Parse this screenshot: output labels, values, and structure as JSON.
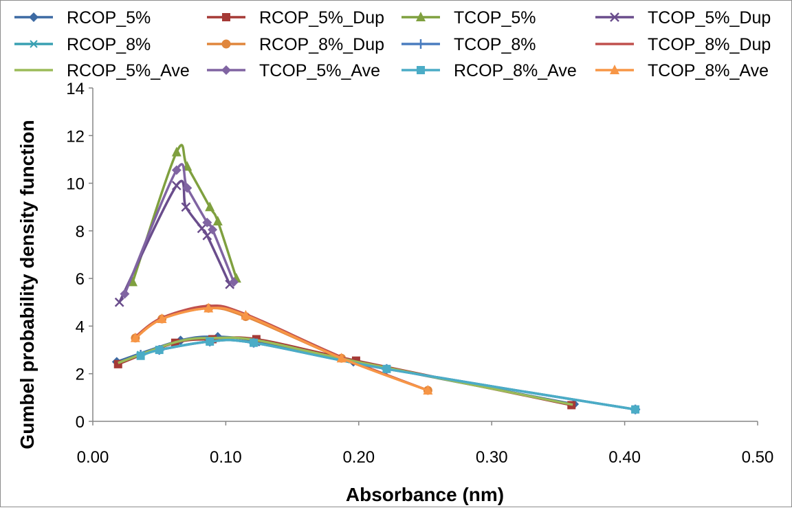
{
  "chart_data": {
    "type": "line",
    "title": "",
    "xlabel": "Absorbance (nm)",
    "ylabel": "Gumbel probability density function",
    "xlim": [
      0,
      0.5
    ],
    "ylim": [
      0,
      14
    ],
    "x_ticks": [
      "0.00",
      "0.10",
      "0.20",
      "0.30",
      "0.40",
      "0.50"
    ],
    "y_ticks": [
      "0",
      "2",
      "4",
      "6",
      "8",
      "10",
      "12",
      "14"
    ],
    "grid": false,
    "legend_position": "top",
    "series": [
      {
        "name": "RCOP_5%",
        "color": "#3d6aa3",
        "marker": "diamond",
        "x": [
          0.018,
          0.066,
          0.094,
          0.125,
          0.196,
          0.362
        ],
        "y": [
          2.5,
          3.4,
          3.55,
          3.35,
          2.5,
          0.72
        ]
      },
      {
        "name": "RCOP_5%_Dup",
        "color": "#a53a36",
        "marker": "square",
        "x": [
          0.019,
          0.062,
          0.09,
          0.123,
          0.198,
          0.36
        ],
        "y": [
          2.4,
          3.3,
          3.45,
          3.45,
          2.55,
          0.68
        ]
      },
      {
        "name": "TCOP_5%",
        "color": "#7fa03f",
        "marker": "triangle",
        "x": [
          0.03,
          0.063,
          0.071,
          0.088,
          0.094,
          0.108
        ],
        "y": [
          5.85,
          11.3,
          10.7,
          9.0,
          8.4,
          6.0
        ]
      },
      {
        "name": "TCOP_5%_Dup",
        "color": "#6a4d8c",
        "marker": "x",
        "x": [
          0.02,
          0.063,
          0.07,
          0.082,
          0.086,
          0.103
        ],
        "y": [
          5.0,
          9.9,
          9.0,
          8.1,
          7.8,
          5.75
        ]
      },
      {
        "name": "RCOP_8%",
        "color": "#39a0b2",
        "marker": "asterisk",
        "x": [
          0.036,
          0.05,
          0.088,
          0.121,
          0.221,
          0.408
        ],
        "y": [
          2.8,
          3.0,
          3.35,
          3.3,
          2.2,
          0.5
        ]
      },
      {
        "name": "RCOP_8%_Dup",
        "color": "#e0863c",
        "marker": "circle",
        "x": [
          0.032,
          0.052,
          0.087,
          0.115,
          0.187,
          0.252
        ],
        "y": [
          3.5,
          4.3,
          4.75,
          4.4,
          2.65,
          1.3
        ]
      },
      {
        "name": "TCOP_8%",
        "color": "#4a7dbf",
        "marker": "plus",
        "x": [
          0.036,
          0.05,
          0.088,
          0.121,
          0.221,
          0.408
        ],
        "y": [
          2.8,
          3.0,
          3.35,
          3.3,
          2.2,
          0.5
        ]
      },
      {
        "name": "TCOP_8%_Dup",
        "color": "#c0504d",
        "marker": "none",
        "x": [
          0.032,
          0.052,
          0.087,
          0.115,
          0.187,
          0.252
        ],
        "y": [
          3.55,
          4.35,
          4.85,
          4.5,
          2.7,
          1.3
        ]
      },
      {
        "name": "RCOP_5%_Ave",
        "color": "#9bbb59",
        "marker": "none",
        "x": [
          0.019,
          0.064,
          0.092,
          0.124,
          0.197,
          0.361
        ],
        "y": [
          2.45,
          3.35,
          3.5,
          3.4,
          2.52,
          0.7
        ]
      },
      {
        "name": "TCOP_5%_Ave",
        "color": "#8064a2",
        "marker": "diamond",
        "x": [
          0.024,
          0.063,
          0.071,
          0.086,
          0.09,
          0.106
        ],
        "y": [
          5.35,
          10.55,
          9.8,
          8.35,
          8.05,
          5.85
        ]
      },
      {
        "name": "RCOP_8%_Ave",
        "color": "#4bacc6",
        "marker": "square",
        "x": [
          0.036,
          0.05,
          0.088,
          0.121,
          0.221,
          0.408
        ],
        "y": [
          2.75,
          3.0,
          3.35,
          3.3,
          2.2,
          0.5
        ]
      },
      {
        "name": "TCOP_8%_Ave",
        "color": "#f79646",
        "marker": "triangle",
        "x": [
          0.032,
          0.052,
          0.087,
          0.115,
          0.187,
          0.252
        ],
        "y": [
          3.5,
          4.3,
          4.75,
          4.45,
          2.65,
          1.3
        ]
      }
    ]
  }
}
